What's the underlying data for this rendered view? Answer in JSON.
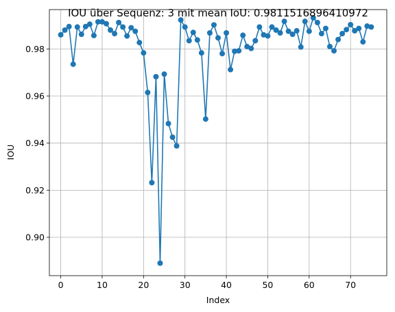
{
  "chart_data": {
    "type": "line",
    "title": "IOU über Sequenz: 3 mit mean IoU: 0.9811516896410972",
    "xlabel": "Index",
    "ylabel": "IOU",
    "xlim": [
      -2.75,
      78.75
    ],
    "ylim": [
      0.8837,
      0.9967
    ],
    "xticks": [
      0,
      10,
      20,
      30,
      40,
      50,
      60,
      70
    ],
    "yticks": [
      0.9,
      0.92,
      0.94,
      0.96,
      0.98
    ],
    "ytick_labels": [
      "0.90",
      "0.92",
      "0.94",
      "0.96",
      "0.98"
    ],
    "grid": true,
    "marker": "circle",
    "color": "#1f77b4",
    "series": [
      {
        "x": [
          0,
          1,
          2,
          3,
          4,
          5,
          6,
          7,
          8,
          9,
          10,
          11,
          12,
          13,
          14,
          15,
          16,
          17,
          18,
          19,
          20,
          21,
          22,
          23,
          24,
          25,
          26,
          27,
          28,
          29,
          30,
          31,
          32,
          33,
          34,
          35,
          36,
          37,
          38,
          39,
          40,
          41,
          42,
          43,
          44,
          45,
          46,
          47,
          48,
          49,
          50,
          51,
          52,
          53,
          54,
          55,
          56,
          57,
          58,
          59,
          60,
          61,
          62,
          63,
          64,
          65,
          66,
          67,
          68,
          69,
          70,
          71,
          72,
          73,
          74,
          75
        ],
        "values": [
          0.986,
          0.988,
          0.9895,
          0.9735,
          0.9893,
          0.9862,
          0.9895,
          0.9905,
          0.9857,
          0.9915,
          0.9915,
          0.9907,
          0.988,
          0.9865,
          0.9912,
          0.9893,
          0.9855,
          0.989,
          0.9875,
          0.9827,
          0.9783,
          0.9615,
          0.9232,
          0.9682,
          0.889,
          0.9693,
          0.9483,
          0.9425,
          0.9388,
          0.9923,
          0.9893,
          0.9835,
          0.987,
          0.9838,
          0.9783,
          0.9502,
          0.9868,
          0.9902,
          0.9847,
          0.978,
          0.9868,
          0.9712,
          0.979,
          0.9792,
          0.9858,
          0.981,
          0.9802,
          0.9835,
          0.9893,
          0.986,
          0.9855,
          0.9893,
          0.988,
          0.9868,
          0.9917,
          0.9875,
          0.9862,
          0.9877,
          0.9808,
          0.9917,
          0.9875,
          0.9932,
          0.9912,
          0.9865,
          0.9887,
          0.981,
          0.9792,
          0.984,
          0.9865,
          0.9882,
          0.9903,
          0.9877,
          0.9887,
          0.983,
          0.9897,
          0.9893
        ]
      }
    ]
  }
}
